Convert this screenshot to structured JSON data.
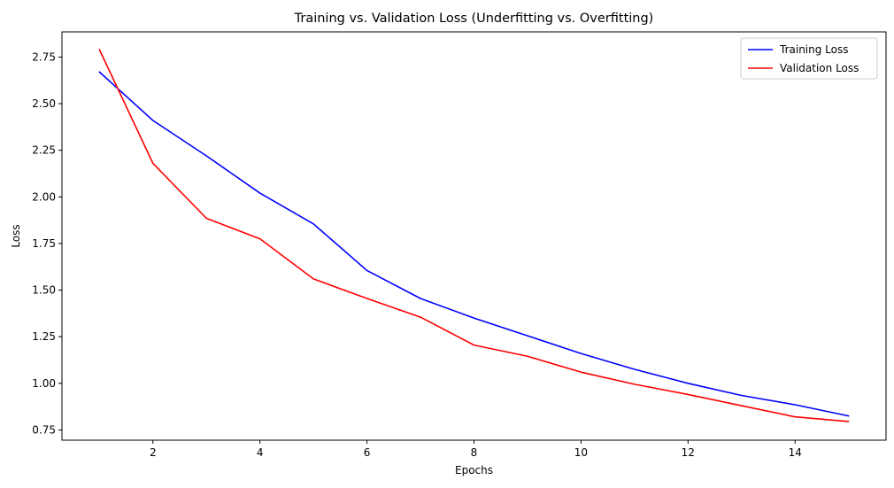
{
  "chart_data": {
    "type": "line",
    "title": "Training vs. Validation Loss (Underfitting vs. Overfitting)",
    "xlabel": "Epochs",
    "ylabel": "Loss",
    "x": [
      1,
      2,
      3,
      4,
      5,
      6,
      7,
      8,
      9,
      10,
      11,
      12,
      13,
      14,
      15
    ],
    "xlim": [
      0.3,
      15.7
    ],
    "ylim": [
      0.695,
      2.885
    ],
    "xticks": [
      2,
      4,
      6,
      8,
      10,
      12,
      14
    ],
    "yticks": [
      0.75,
      1.0,
      1.25,
      1.5,
      1.75,
      2.0,
      2.25,
      2.5,
      2.75
    ],
    "xtick_labels": [
      "2",
      "4",
      "6",
      "8",
      "10",
      "12",
      "14"
    ],
    "ytick_labels": [
      "0.75",
      "1.00",
      "1.25",
      "1.50",
      "1.75",
      "2.00",
      "2.25",
      "2.50",
      "2.75"
    ],
    "grid": false,
    "legend_position": "top-right",
    "series": [
      {
        "name": "Training Loss",
        "color": "#0000ff",
        "values": [
          2.67,
          2.41,
          2.22,
          2.02,
          1.855,
          1.605,
          1.455,
          1.35,
          1.255,
          1.16,
          1.075,
          1.0,
          0.935,
          0.885,
          0.825
        ]
      },
      {
        "name": "Validation Loss",
        "color": "#ff0000",
        "values": [
          2.79,
          2.18,
          1.885,
          1.775,
          1.56,
          1.455,
          1.355,
          1.205,
          1.145,
          1.06,
          0.995,
          0.94,
          0.88,
          0.82,
          0.795
        ]
      }
    ]
  }
}
